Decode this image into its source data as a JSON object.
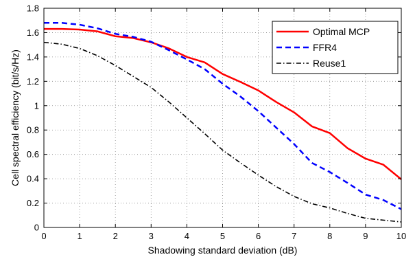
{
  "chart_data": {
    "type": "line",
    "xlabel": "Shadowing standard deviation (dB)",
    "ylabel": "Cell spectral efficiency (bit/s/Hz)",
    "xlim": [
      0,
      10
    ],
    "ylim": [
      0,
      1.8
    ],
    "xticks": [
      0,
      1,
      2,
      3,
      4,
      5,
      6,
      7,
      8,
      9,
      10
    ],
    "yticks": [
      0,
      0.2,
      0.4,
      0.6,
      0.8,
      1,
      1.2,
      1.4,
      1.6,
      1.8
    ],
    "grid": true,
    "legend_position": "top-right",
    "x": [
      0,
      0.5,
      1,
      1.5,
      2,
      2.5,
      3,
      3.5,
      4,
      4.5,
      5,
      5.5,
      6,
      6.5,
      7,
      7.5,
      8,
      8.5,
      9,
      9.5,
      10
    ],
    "series": [
      {
        "name": "Optimal MCP",
        "color": "#ff0000",
        "dash": "solid",
        "values": [
          1.63,
          1.63,
          1.625,
          1.61,
          1.57,
          1.555,
          1.52,
          1.47,
          1.4,
          1.355,
          1.26,
          1.195,
          1.125,
          1.03,
          0.945,
          0.83,
          0.775,
          0.65,
          0.565,
          0.515,
          0.395
        ]
      },
      {
        "name": "FFR4",
        "color": "#0000ff",
        "dash": "dashed",
        "values": [
          1.68,
          1.68,
          1.665,
          1.635,
          1.59,
          1.565,
          1.525,
          1.455,
          1.38,
          1.3,
          1.18,
          1.075,
          0.955,
          0.82,
          0.685,
          0.53,
          0.455,
          0.365,
          0.27,
          0.225,
          0.15
        ]
      },
      {
        "name": "Reuse1",
        "color": "#000000",
        "dash": "dashdot",
        "values": [
          1.52,
          1.505,
          1.47,
          1.41,
          1.33,
          1.24,
          1.15,
          1.03,
          0.9,
          0.77,
          0.635,
          0.53,
          0.43,
          0.335,
          0.255,
          0.195,
          0.16,
          0.115,
          0.075,
          0.06,
          0.045
        ]
      }
    ]
  }
}
